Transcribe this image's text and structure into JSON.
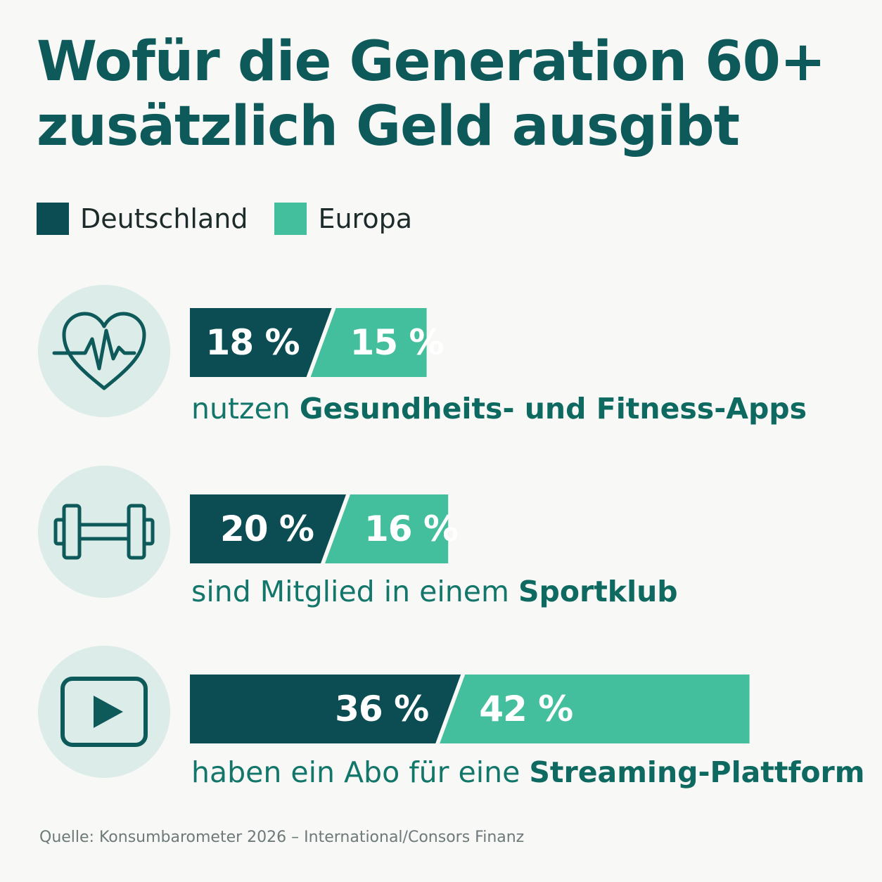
{
  "title_line1": "Wofür die Generation 60+",
  "title_line2": "zusätzlich Geld ausgibt",
  "legend": [
    {
      "label": "Deutschland",
      "color": "#0b4d52"
    },
    {
      "label": "Europa",
      "color": "#44bf9e"
    }
  ],
  "chart_data": {
    "type": "bar",
    "unit": "%",
    "series": [
      {
        "name": "Deutschland",
        "color": "#0b4d52",
        "values": [
          18,
          20,
          36
        ]
      },
      {
        "name": "Europa",
        "color": "#44bf9e",
        "values": [
          15,
          16,
          42
        ]
      }
    ],
    "items": [
      {
        "icon": "heart-pulse-icon",
        "deutschland": 18,
        "europa": 15,
        "label_deutschland": "18 %",
        "label_europa": "15 %",
        "caption_normal": "nutzen ",
        "caption_bold": "Gesundheits- und Fitness-Apps"
      },
      {
        "icon": "dumbbell-icon",
        "deutschland": 20,
        "europa": 16,
        "label_deutschland": "20 %",
        "label_europa": "16 %",
        "caption_normal": "sind Mitglied in einem ",
        "caption_bold": "Sportklub"
      },
      {
        "icon": "play-button-icon",
        "deutschland": 36,
        "europa": 42,
        "label_deutschland": "36 %",
        "label_europa": "42 %",
        "caption_normal": "haben ein Abo für eine ",
        "caption_bold": "Streaming-Plattform"
      }
    ]
  },
  "source": "Quelle: Konsumbarometer 2026 – International/Consors Finanz"
}
